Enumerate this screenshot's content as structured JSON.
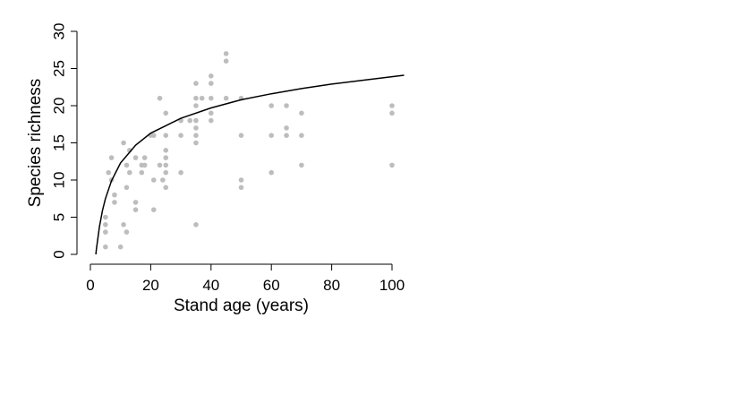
{
  "chart_data": {
    "type": "scatter",
    "title": "",
    "xlabel": "Stand age (years)",
    "ylabel": "Species richness",
    "xlim": [
      0,
      100
    ],
    "ylim": [
      0,
      30
    ],
    "xticks": [
      0,
      20,
      40,
      60,
      80,
      100
    ],
    "yticks": [
      0,
      5,
      10,
      15,
      20,
      25,
      30
    ],
    "x_tick_labels": [
      "0",
      "20",
      "40",
      "60",
      "80",
      "100"
    ],
    "y_tick_labels": [
      "0",
      "5",
      "10",
      "15",
      "20",
      "25",
      "30"
    ],
    "grid": false,
    "legend": "none",
    "point_color": "#bdbdbd",
    "line_color": "#000000",
    "series": [
      {
        "type": "scatter",
        "points": [
          [
            5,
            1
          ],
          [
            5,
            3
          ],
          [
            5,
            4
          ],
          [
            5,
            5
          ],
          [
            6,
            11
          ],
          [
            7,
            10
          ],
          [
            7,
            13
          ],
          [
            8,
            7
          ],
          [
            8,
            8
          ],
          [
            10,
            1
          ],
          [
            11,
            4
          ],
          [
            11,
            15
          ],
          [
            12,
            3
          ],
          [
            12,
            9
          ],
          [
            12,
            12
          ],
          [
            13,
            14
          ],
          [
            13,
            11
          ],
          [
            15,
            6
          ],
          [
            15,
            7
          ],
          [
            15,
            13
          ],
          [
            17,
            11
          ],
          [
            17,
            12
          ],
          [
            18,
            13
          ],
          [
            18,
            12
          ],
          [
            20,
            16
          ],
          [
            21,
            16
          ],
          [
            21,
            10
          ],
          [
            21,
            6
          ],
          [
            23,
            21
          ],
          [
            23,
            12
          ],
          [
            24,
            10
          ],
          [
            25,
            9
          ],
          [
            25,
            11
          ],
          [
            25,
            12
          ],
          [
            25,
            13
          ],
          [
            25,
            14
          ],
          [
            25,
            16
          ],
          [
            25,
            19
          ],
          [
            30,
            11
          ],
          [
            30,
            16
          ],
          [
            30,
            18
          ],
          [
            33,
            18
          ],
          [
            35,
            4
          ],
          [
            35,
            15
          ],
          [
            35,
            16
          ],
          [
            35,
            17
          ],
          [
            35,
            18
          ],
          [
            35,
            20
          ],
          [
            35,
            21
          ],
          [
            35,
            23
          ],
          [
            37,
            21
          ],
          [
            40,
            18
          ],
          [
            40,
            19
          ],
          [
            40,
            21
          ],
          [
            40,
            23
          ],
          [
            40,
            24
          ],
          [
            45,
            21
          ],
          [
            45,
            26
          ],
          [
            45,
            27
          ],
          [
            50,
            9
          ],
          [
            50,
            10
          ],
          [
            50,
            16
          ],
          [
            50,
            21
          ],
          [
            60,
            11
          ],
          [
            60,
            16
          ],
          [
            60,
            20
          ],
          [
            65,
            16
          ],
          [
            65,
            17
          ],
          [
            65,
            20
          ],
          [
            70,
            12
          ],
          [
            70,
            16
          ],
          [
            70,
            19
          ],
          [
            100,
            12
          ],
          [
            100,
            19
          ],
          [
            100,
            20
          ]
        ]
      },
      {
        "type": "line",
        "fit": "logarithmic",
        "points": [
          [
            1.8,
            0
          ],
          [
            2,
            0.7
          ],
          [
            3,
            3.7
          ],
          [
            4,
            5.9
          ],
          [
            5,
            7.5
          ],
          [
            7,
            9.9
          ],
          [
            10,
            12.3
          ],
          [
            15,
            14.7
          ],
          [
            20,
            16.3
          ],
          [
            30,
            18.3
          ],
          [
            40,
            19.7
          ],
          [
            50,
            20.8
          ],
          [
            60,
            21.6
          ],
          [
            70,
            22.3
          ],
          [
            80,
            22.9
          ],
          [
            90,
            23.4
          ],
          [
            104,
            24.1
          ]
        ]
      }
    ]
  }
}
